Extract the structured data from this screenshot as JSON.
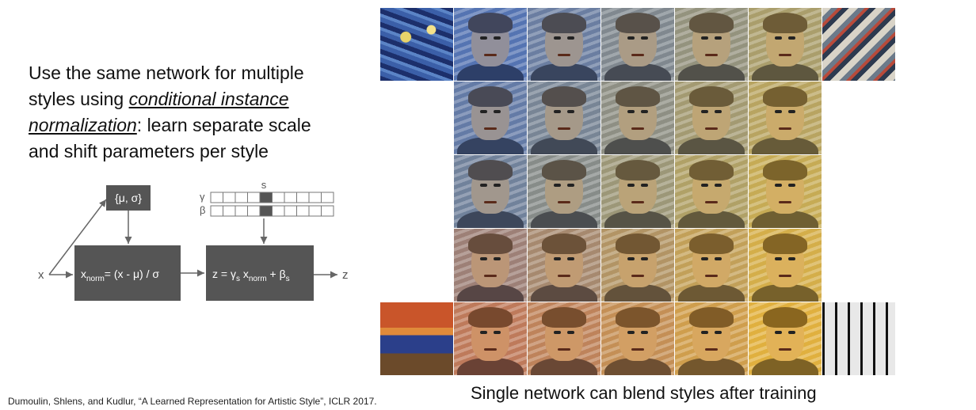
{
  "slide": {
    "bullet_part1": "Use the same network for multiple styles using ",
    "bullet_emph": "conditional instance normalization",
    "bullet_part2": ": learn separate scale and shift parameters per style",
    "caption": "Single network can blend styles after training",
    "citation": "Dumoulin, Shlens, and Kudlur, “A Learned Representation for Artistic Style”, ICLR 2017."
  },
  "diagram": {
    "input_label": "x",
    "output_label": "z",
    "stats_box": "{μ, σ}",
    "style_index_label": "s",
    "gamma_label": "γ",
    "beta_label": "β",
    "norm_box_parts": [
      "x",
      "norm",
      "= (x - μ) / σ"
    ],
    "affine_box_parts": [
      "z = γ",
      "s",
      " x",
      "norm",
      " + β",
      "s"
    ]
  },
  "style_grid": {
    "style_a_color": "#3b5fa8",
    "style_b_color": "#e0b020",
    "rows": 5,
    "cols": 5
  }
}
